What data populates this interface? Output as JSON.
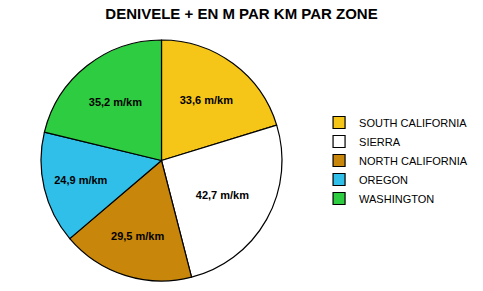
{
  "chart_data": {
    "type": "pie",
    "title": "DENIVELE + EN M PAR KM PAR ZONE",
    "categories": [
      "SOUTH CALIFORNIA",
      "SIERRA",
      "NORTH CALIFORNIA",
      "OREGON",
      "WASHINGTON"
    ],
    "values": [
      33.6,
      42.7,
      29.5,
      24.9,
      35.2
    ],
    "value_labels": [
      "33,6 m/km",
      "42,7 m/km",
      "29,5 m/km",
      "24,9 m/km",
      "35,2 m/km"
    ],
    "colors": [
      "#F5C518",
      "#FFFFFF",
      "#C8860A",
      "#30BFE8",
      "#2ECC40"
    ],
    "data_labels": true,
    "legend": "right"
  }
}
